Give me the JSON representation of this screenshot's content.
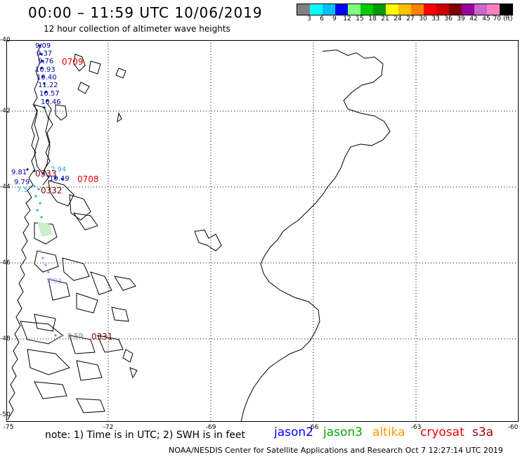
{
  "header": {
    "title": "00:00 – 11:59 UTC 10/06/2019",
    "subtitle": "12 hour collection of altimeter wave heights"
  },
  "legend": {
    "labels": [
      "3",
      "6",
      "9",
      "12",
      "15",
      "18",
      "21",
      "24",
      "27",
      "30",
      "33",
      "36",
      "39",
      "42",
      "45",
      "70 (ft)"
    ],
    "colors": [
      "#808080",
      "#00ffff",
      "#00bfff",
      "#0000ff",
      "#7fff7f",
      "#00cc00",
      "#009900",
      "#ffff00",
      "#ffbf00",
      "#ff8000",
      "#ff0000",
      "#cc0000",
      "#800000",
      "#990099",
      "#cc66cc",
      "#ff80c0",
      "#000000"
    ]
  },
  "axes": {
    "lat_labels": [
      "-40",
      "-42",
      "-44",
      "-46",
      "-48",
      "-50"
    ],
    "lon_labels": [
      "-75",
      "-72",
      "-69",
      "-66",
      "-63",
      "-60"
    ]
  },
  "observations": [
    {
      "text": "9.09",
      "color": "#0000aa"
    },
    {
      "text": "9.37",
      "color": "#0000aa"
    },
    {
      "text": "9.76",
      "color": "#0000aa"
    },
    {
      "text": "10.93",
      "color": "#0000aa"
    },
    {
      "text": "10.40",
      "color": "#0000aa"
    },
    {
      "text": "11.22",
      "color": "#0000aa"
    },
    {
      "text": "10.57",
      "color": "#0000aa"
    },
    {
      "text": "10.46",
      "color": "#0000aa"
    },
    {
      "text": "9.81",
      "color": "#0000aa"
    },
    {
      "text": "9.79",
      "color": "#0000aa"
    },
    {
      "text": "10.49",
      "color": "#0000aa"
    },
    {
      "text": "7.94",
      "color": "#33aadd"
    },
    {
      "text": "7.5",
      "color": "#33aadd"
    },
    {
      "text": "5.93",
      "color": "#9999ee"
    },
    {
      "text": "0.59",
      "color": "#888888"
    }
  ],
  "times": [
    {
      "text": "0709",
      "color": "#ee0000"
    },
    {
      "text": "0333",
      "color": "#880000"
    },
    {
      "text": "0708",
      "color": "#ee0000"
    },
    {
      "text": "0332",
      "color": "#880000"
    },
    {
      "text": "0331",
      "color": "#880000"
    }
  ],
  "note": "note: 1) Time is in UTC; 2) SWH is in feet",
  "satellites": [
    {
      "name": "jason2",
      "color": "#0000ff"
    },
    {
      "name": "jason3",
      "color": "#00aa00"
    },
    {
      "name": "altika",
      "color": "#ff9900"
    },
    {
      "name": "cryosat",
      "color": "#ee0000"
    },
    {
      "name": "s3a",
      "color": "#990000"
    }
  ],
  "footer": "NOAA/NESDIS Center for Satellite Applications and Research   Oct  7 12:27:14 UTC 2019"
}
